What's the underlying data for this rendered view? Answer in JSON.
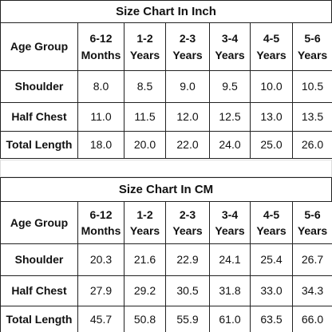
{
  "tables": [
    {
      "title": "Size Chart In Inch",
      "header": [
        [
          "Age Group"
        ],
        [
          "6-12",
          "Months"
        ],
        [
          "1-2",
          "Years"
        ],
        [
          "2-3",
          "Years"
        ],
        [
          "3-4",
          "Years"
        ],
        [
          "4-5",
          "Years"
        ],
        [
          "5-6",
          "Years"
        ]
      ],
      "rows": [
        [
          "Shoulder",
          "8.0",
          "8.5",
          "9.0",
          "9.5",
          "10.0",
          "10.5"
        ],
        [
          "Half Chest",
          "11.0",
          "11.5",
          "12.0",
          "12.5",
          "13.0",
          "13.5"
        ],
        [
          "Total Length",
          "18.0",
          "20.0",
          "22.0",
          "24.0",
          "25.0",
          "26.0"
        ]
      ]
    },
    {
      "title": "Size Chart In CM",
      "header": [
        [
          "Age Group"
        ],
        [
          "6-12",
          "Months"
        ],
        [
          "1-2",
          "Years"
        ],
        [
          "2-3",
          "Years"
        ],
        [
          "3-4",
          "Years"
        ],
        [
          "4-5",
          "Years"
        ],
        [
          "5-6",
          "Years"
        ]
      ],
      "rows": [
        [
          "Shoulder",
          "20.3",
          "21.6",
          "22.9",
          "24.1",
          "25.4",
          "26.7"
        ],
        [
          "Half Chest",
          "27.9",
          "29.2",
          "30.5",
          "31.8",
          "33.0",
          "34.3"
        ],
        [
          "Total Length",
          "45.7",
          "50.8",
          "55.9",
          "61.0",
          "63.5",
          "66.0"
        ]
      ]
    }
  ]
}
